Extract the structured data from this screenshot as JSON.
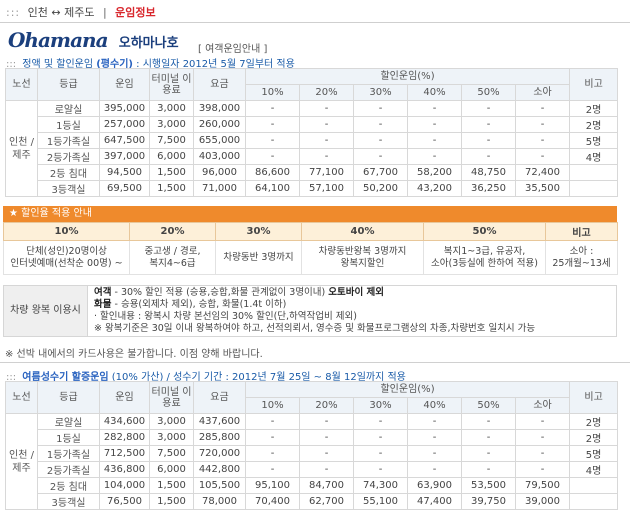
{
  "breadcrumb": {
    "dots": ":::",
    "route": "인천 ↔ 제주도",
    "current": "운임정보"
  },
  "brand": {
    "logo": "Ohamana",
    "name": "오하마나호"
  },
  "subtitle": "[ 여객운임안내 ]",
  "section1": {
    "dots": "::: ",
    "prefix": "정액 및 할인운임 ",
    "highlight": "(평수기)",
    "suffix": " : 시행일자 2012년 5월 7일부터 적용"
  },
  "headers": {
    "route": "노선",
    "grade": "등급",
    "fare": "운임",
    "terminal": "터미널 이용료",
    "total": "요금",
    "discount": "할인운임(%)",
    "d10": "10%",
    "d20": "20%",
    "d30": "30%",
    "d40": "40%",
    "d50": "50%",
    "child": "소아",
    "note": "비고"
  },
  "route_label": "인천 / 제주",
  "table1": [
    [
      "로얄실",
      "395,000",
      "3,000",
      "398,000",
      "-",
      "-",
      "-",
      "-",
      "-",
      "-",
      "2명"
    ],
    [
      "1등실",
      "257,000",
      "3,000",
      "260,000",
      "-",
      "-",
      "-",
      "-",
      "-",
      "-",
      "2명"
    ],
    [
      "1등가족실",
      "647,500",
      "7,500",
      "655,000",
      "-",
      "-",
      "-",
      "-",
      "-",
      "-",
      "5명"
    ],
    [
      "2등가족실",
      "397,000",
      "6,000",
      "403,000",
      "-",
      "-",
      "-",
      "-",
      "-",
      "-",
      "4명"
    ],
    [
      "2등 침대",
      "94,500",
      "1,500",
      "96,000",
      "86,600",
      "77,100",
      "67,700",
      "58,200",
      "48,750",
      "72,400",
      ""
    ],
    [
      "3등객실",
      "69,500",
      "1,500",
      "71,000",
      "64,100",
      "57,100",
      "50,200",
      "43,200",
      "36,250",
      "35,500",
      ""
    ]
  ],
  "discount": {
    "title": "★ 할인율 적용 안내",
    "headers": [
      "10%",
      "20%",
      "30%",
      "40%",
      "50%",
      "비고"
    ],
    "cells": [
      [
        "단체(성인)20명이상",
        "인터넷예매(선착순 00명) ~"
      ],
      [
        "중고생 / 경로,",
        "복지4~6급"
      ],
      [
        "차량동반 3명까지"
      ],
      [
        "차량동반왕복 3명까지",
        "왕복지할인"
      ],
      [
        "복지1~3급, 유공자,",
        "소아(3등실에 한하여 적용)"
      ],
      [
        "소아 :",
        "25개월~13세"
      ]
    ]
  },
  "vehicle": {
    "label": "차량 왕복 이용시",
    "line1_a": "여객",
    "line1_b": " - 30% 할인 적용 (승용,승합,화물 관계없이 3명이내) ",
    "line1_c": "오토바이 제외",
    "line2_a": "화물",
    "line2_b": " - 승용(외제차 제외), 승합, 화물(1.4t 이하)",
    "line3": "· 할인내용 : 왕복시 차량 본선임의 30% 할인(단,하역작업비 제외)",
    "line4": "※ 왕복기준은 30일 이내 왕복하여야 하고, 선적의뢰서, 영수증 및 화물프로그램상의 차종,차량번호 일치시 가능"
  },
  "card_note": "※ 선박 내에서의 카드사용은 불가합니다. 이점 양해 바랍니다.",
  "section2": {
    "dots": "::: ",
    "highlight": "여름성수기 할증운임",
    "suffix": " (10% 가산) / 성수기 기간 : 2012년 7월 25일 ~ 8월 12일까지 적용"
  },
  "table2": [
    [
      "로얄실",
      "434,600",
      "3,000",
      "437,600",
      "-",
      "-",
      "-",
      "-",
      "-",
      "-",
      "2명"
    ],
    [
      "1등실",
      "282,800",
      "3,000",
      "285,800",
      "-",
      "-",
      "-",
      "-",
      "-",
      "-",
      "2명"
    ],
    [
      "1등가족실",
      "712,500",
      "7,500",
      "720,000",
      "-",
      "-",
      "-",
      "-",
      "-",
      "-",
      "5명"
    ],
    [
      "2등가족실",
      "436,800",
      "6,000",
      "442,800",
      "-",
      "-",
      "-",
      "-",
      "-",
      "-",
      "4명"
    ],
    [
      "2등 침대",
      "104,000",
      "1,500",
      "105,500",
      "95,100",
      "84,700",
      "74,300",
      "63,900",
      "53,500",
      "79,500",
      ""
    ],
    [
      "3등객실",
      "76,500",
      "1,500",
      "78,000",
      "70,400",
      "62,700",
      "55,100",
      "47,400",
      "39,750",
      "39,000",
      ""
    ]
  ]
}
